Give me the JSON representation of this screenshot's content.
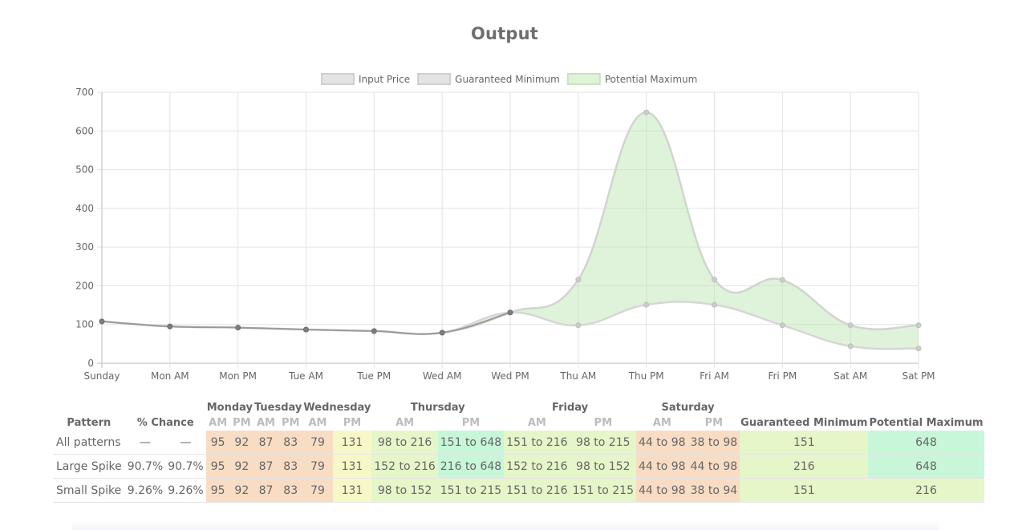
{
  "title": "Output",
  "chart_data": {
    "type": "line",
    "categories": [
      "Sunday",
      "Mon AM",
      "Mon PM",
      "Tue AM",
      "Tue PM",
      "Wed AM",
      "Wed PM",
      "Thu AM",
      "Thu PM",
      "Fri AM",
      "Fri PM",
      "Sat AM",
      "Sat PM"
    ],
    "ylim": [
      0,
      700
    ],
    "yticks": [
      0,
      100,
      200,
      300,
      400,
      500,
      600,
      700
    ],
    "grid": true,
    "legend": "top",
    "series": [
      {
        "name": "Input Price",
        "values": [
          108,
          95,
          92,
          87,
          83,
          79,
          131,
          null,
          null,
          null,
          null,
          null,
          null
        ],
        "color": "#808080"
      },
      {
        "name": "Guaranteed Minimum",
        "values": [
          108,
          95,
          92,
          87,
          83,
          79,
          131,
          98,
          151,
          151,
          98,
          44,
          38
        ],
        "color": "#cccccc"
      },
      {
        "name": "Potential Maximum",
        "values": [
          108,
          95,
          92,
          87,
          83,
          79,
          131,
          216,
          648,
          216,
          215,
          98,
          98
        ],
        "color": "#b9e4b0"
      }
    ]
  },
  "table": {
    "headers": {
      "pattern": "Pattern",
      "chance": "% Chance",
      "days": [
        "Monday",
        "Tuesday",
        "Wednesday",
        "Thursday",
        "Friday",
        "Saturday"
      ],
      "am": "AM",
      "pm": "PM",
      "guaranteed_minimum": "Guaranteed Minimum",
      "potential_maximum": "Potential Maximum"
    },
    "rows": [
      {
        "pattern": "All patterns",
        "chance1": "—",
        "chance2": "—",
        "prices": [
          "95",
          "92",
          "87",
          "83",
          "79",
          "131",
          "98 to 216",
          "151 to 648",
          "151 to 216",
          "98 to 215",
          "44 to 98",
          "38 to 98"
        ],
        "min": "151",
        "max": "648"
      },
      {
        "pattern": "Large Spike",
        "chance1": "90.7%",
        "chance2": "90.7%",
        "prices": [
          "95",
          "92",
          "87",
          "83",
          "79",
          "131",
          "152 to 216",
          "216 to 648",
          "152 to 216",
          "98 to 152",
          "44 to 98",
          "44 to 98"
        ],
        "min": "216",
        "max": "648"
      },
      {
        "pattern": "Small Spike",
        "chance1": "9.26%",
        "chance2": "9.26%",
        "prices": [
          "95",
          "92",
          "87",
          "83",
          "79",
          "131",
          "98 to 152",
          "151 to 215",
          "151 to 216",
          "151 to 215",
          "44 to 98",
          "38 to 94"
        ],
        "min": "151",
        "max": "216"
      }
    ]
  }
}
